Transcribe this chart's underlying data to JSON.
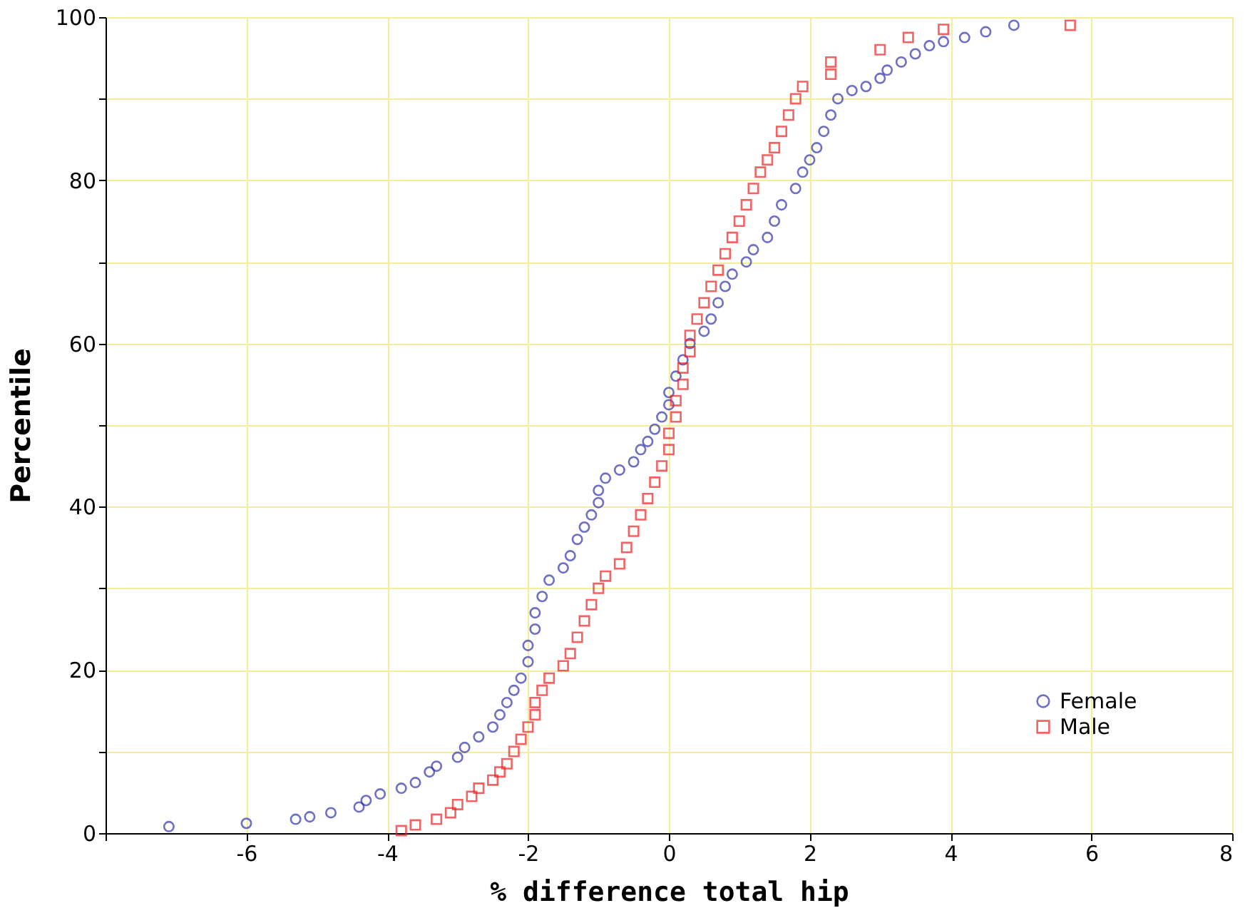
{
  "chart_data": {
    "type": "scatter",
    "xlabel": "% difference total hip",
    "ylabel": "Percentile",
    "xlim": [
      -8,
      8
    ],
    "ylim": [
      0,
      100
    ],
    "xticks": [
      {
        "value": -8,
        "label": null
      },
      -6,
      -4,
      -2,
      0,
      2,
      4,
      6,
      8
    ],
    "yticks": [
      0,
      {
        "value": 10,
        "label": null
      },
      20,
      {
        "value": 30,
        "label": null
      },
      40,
      {
        "value": 50,
        "label": null
      },
      60,
      {
        "value": 70,
        "label": null
      },
      80,
      {
        "value": 90,
        "label": null
      },
      100
    ],
    "grid": true,
    "legend": "bottom right",
    "series": [
      {
        "name": "Female",
        "color": "#3333aa",
        "marker": "circle",
        "x": [
          -7.1,
          -6.0,
          -5.3,
          -5.1,
          -4.8,
          -4.4,
          -4.3,
          -4.1,
          -3.8,
          -3.6,
          -3.4,
          -3.3,
          -3.0,
          -2.9,
          -2.7,
          -2.5,
          -2.4,
          -2.3,
          -2.2,
          -2.1,
          -2.0,
          -2.0,
          -1.9,
          -1.9,
          -1.8,
          -1.7,
          -1.5,
          -1.4,
          -1.3,
          -1.2,
          -1.1,
          -1.0,
          -1.0,
          -0.9,
          -0.7,
          -0.5,
          -0.4,
          -0.3,
          -0.2,
          -0.1,
          0.0,
          0.0,
          0.1,
          0.2,
          0.3,
          0.5,
          0.6,
          0.7,
          0.8,
          0.9,
          1.1,
          1.2,
          1.4,
          1.5,
          1.6,
          1.8,
          1.9,
          2.0,
          2.1,
          2.2,
          2.3,
          2.4,
          2.6,
          2.8,
          3.0,
          3.1,
          3.3,
          3.5,
          3.7,
          3.9,
          4.2,
          4.5,
          4.9
        ],
        "values": [
          0.8,
          1.2,
          1.7,
          2,
          2.5,
          3.2,
          4,
          4.8,
          5.5,
          6.2,
          7.5,
          8.2,
          9.3,
          10.5,
          11.8,
          13,
          14.5,
          16,
          17.5,
          19,
          21,
          23,
          25,
          27,
          29,
          31,
          32.5,
          34,
          36,
          37.5,
          39,
          40.5,
          42,
          43.5,
          44.5,
          45.5,
          47,
          48,
          49.5,
          51,
          52.5,
          54,
          56,
          58,
          60,
          61.5,
          63,
          65,
          67,
          68.5,
          70,
          71.5,
          73,
          75,
          77,
          79,
          81,
          82.5,
          84,
          86,
          88,
          90,
          91,
          91.5,
          92.5,
          93.5,
          94.5,
          95.5,
          96.5,
          97,
          97.5,
          98.2,
          99
        ]
      },
      {
        "name": "Male",
        "color": "#ee2222",
        "marker": "square",
        "x": [
          -3.8,
          -3.6,
          -3.3,
          -3.1,
          -3.0,
          -2.8,
          -2.7,
          -2.5,
          -2.4,
          -2.3,
          -2.2,
          -2.1,
          -2.0,
          -1.9,
          -1.9,
          -1.8,
          -1.7,
          -1.5,
          -1.4,
          -1.3,
          -1.2,
          -1.1,
          -1.0,
          -0.9,
          -0.7,
          -0.6,
          -0.5,
          -0.4,
          -0.3,
          -0.2,
          -0.1,
          0.0,
          0.0,
          0.1,
          0.1,
          0.2,
          0.2,
          0.3,
          0.3,
          0.4,
          0.5,
          0.6,
          0.7,
          0.8,
          0.9,
          1.0,
          1.1,
          1.2,
          1.3,
          1.4,
          1.5,
          1.6,
          1.7,
          1.8,
          1.9,
          2.3,
          2.3,
          3.0,
          3.4,
          3.9,
          5.7
        ],
        "values": [
          0.3,
          1,
          1.7,
          2.5,
          3.5,
          4.5,
          5.5,
          6.5,
          7.5,
          8.5,
          10,
          11.5,
          13,
          14.5,
          16,
          17.5,
          19,
          20.5,
          22,
          24,
          26,
          28,
          30,
          31.5,
          33,
          35,
          37,
          39,
          41,
          43,
          45,
          47,
          49,
          51,
          53,
          55,
          57,
          59,
          61,
          63,
          65,
          67,
          69,
          71,
          73,
          75,
          77,
          79,
          81,
          82.5,
          84,
          86,
          88,
          90,
          91.5,
          93,
          94.5,
          96,
          97.5,
          98.5,
          99
        ]
      }
    ]
  }
}
